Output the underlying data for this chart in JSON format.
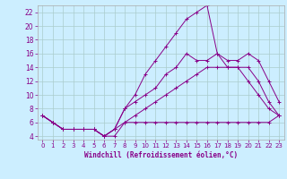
{
  "title": "",
  "xlabel": "Windchill (Refroidissement éolien,°C)",
  "bg_color": "#cceeff",
  "line_color": "#880088",
  "grid_color": "#aacccc",
  "spine_color": "#aaaaaa",
  "xlim": [
    -0.5,
    23.5
  ],
  "ylim": [
    3.5,
    23.0
  ],
  "yticks": [
    4,
    6,
    8,
    10,
    12,
    14,
    16,
    18,
    20,
    22
  ],
  "xticks": [
    0,
    1,
    2,
    3,
    4,
    5,
    6,
    7,
    8,
    9,
    10,
    11,
    12,
    13,
    14,
    15,
    16,
    17,
    18,
    19,
    20,
    21,
    22,
    23
  ],
  "series": [
    {
      "x": [
        0,
        1,
        2,
        3,
        4,
        5,
        6,
        7,
        8,
        9,
        10,
        11,
        12,
        13,
        14,
        15,
        16,
        17,
        18,
        19,
        20,
        21,
        22,
        23
      ],
      "y": [
        7,
        6,
        5,
        5,
        5,
        5,
        4,
        4,
        6,
        6,
        6,
        6,
        6,
        6,
        6,
        6,
        6,
        6,
        6,
        6,
        6,
        6,
        6,
        7
      ]
    },
    {
      "x": [
        0,
        1,
        2,
        3,
        4,
        5,
        6,
        7,
        8,
        9,
        10,
        11,
        12,
        13,
        14,
        15,
        16,
        17,
        18,
        19,
        20,
        21,
        22,
        23
      ],
      "y": [
        7,
        6,
        5,
        5,
        5,
        5,
        4,
        5,
        8,
        10,
        13,
        15,
        17,
        19,
        21,
        22,
        23,
        16,
        15,
        15,
        16,
        15,
        12,
        9
      ]
    },
    {
      "x": [
        0,
        1,
        2,
        3,
        4,
        5,
        6,
        7,
        8,
        9,
        10,
        11,
        12,
        13,
        14,
        15,
        16,
        17,
        18,
        19,
        20,
        21,
        22,
        23
      ],
      "y": [
        7,
        6,
        5,
        5,
        5,
        5,
        4,
        5,
        8,
        9,
        10,
        11,
        13,
        14,
        16,
        15,
        15,
        16,
        14,
        14,
        12,
        10,
        8,
        7
      ]
    },
    {
      "x": [
        0,
        1,
        2,
        3,
        4,
        5,
        6,
        7,
        8,
        9,
        10,
        11,
        12,
        13,
        14,
        15,
        16,
        17,
        18,
        19,
        20,
        21,
        22,
        23
      ],
      "y": [
        7,
        6,
        5,
        5,
        5,
        5,
        4,
        5,
        6,
        7,
        8,
        9,
        10,
        11,
        12,
        13,
        14,
        14,
        14,
        14,
        14,
        12,
        9,
        7
      ]
    }
  ]
}
